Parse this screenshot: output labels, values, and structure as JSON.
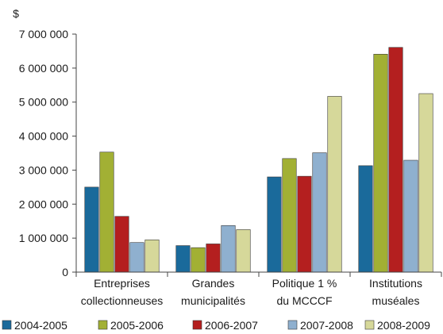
{
  "chart_data": {
    "type": "bar",
    "unit_label": "$",
    "categories": [
      [
        "Entreprises",
        "collectionneuses"
      ],
      [
        "Grandes",
        "municipalités"
      ],
      [
        "Politique 1 %",
        "du MCCCF"
      ],
      [
        "Institutions",
        "muséales"
      ]
    ],
    "ylim": [
      0,
      7000000
    ],
    "yticks": [
      0,
      1000000,
      2000000,
      3000000,
      4000000,
      5000000,
      6000000,
      7000000
    ],
    "ytick_labels": [
      "0",
      "1 000 000",
      "2 000 000",
      "3 000 000",
      "4 000 000",
      "5 000 000",
      "6 000 000",
      "7 000 000"
    ],
    "grid": false,
    "legend_position": "bottom",
    "series": [
      {
        "name": "2004-2005",
        "color": "#1a6a9b",
        "values": [
          2500000,
          780000,
          2800000,
          3130000
        ]
      },
      {
        "name": "2005-2006",
        "color": "#a2b034",
        "values": [
          3530000,
          720000,
          3340000,
          6410000
        ]
      },
      {
        "name": "2006-2007",
        "color": "#b41f1f",
        "values": [
          1640000,
          830000,
          2820000,
          6610000
        ]
      },
      {
        "name": "2007-2008",
        "color": "#8fb0cf",
        "values": [
          870000,
          1370000,
          3510000,
          3290000
        ]
      },
      {
        "name": "2008-2009",
        "color": "#d6d89a",
        "values": [
          950000,
          1250000,
          5170000,
          5250000
        ]
      }
    ]
  }
}
